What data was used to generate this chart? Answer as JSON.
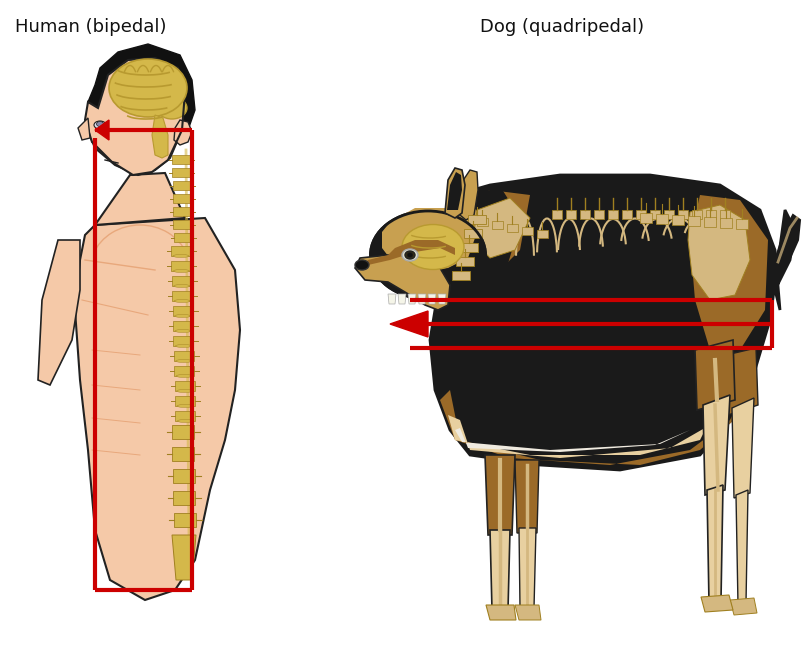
{
  "title_left": "Human (bipedal)",
  "title_right": "Dog (quadripedal)",
  "title_fontsize": 13,
  "background_color": "#ffffff",
  "arrow_color": "#cc0000",
  "arrow_linewidth": 3.0,
  "figure_width": 8.12,
  "figure_height": 6.52,
  "dpi": 100,
  "skin_color": "#f5c9a8",
  "skin_dark": "#e8a87c",
  "skin_outline": "#222222",
  "hair_color": "#111111",
  "brain_yellow": "#d4b84a",
  "brain_dark": "#b89a30",
  "spine_yellow": "#d4b84a",
  "spine_outline": "#a08020",
  "dog_black": "#1a1a1a",
  "dog_brown": "#9b6a28",
  "dog_tan": "#c8a050",
  "dog_light": "#d4b880",
  "dog_cream": "#e8d0a0",
  "dog_grey": "#888888"
}
